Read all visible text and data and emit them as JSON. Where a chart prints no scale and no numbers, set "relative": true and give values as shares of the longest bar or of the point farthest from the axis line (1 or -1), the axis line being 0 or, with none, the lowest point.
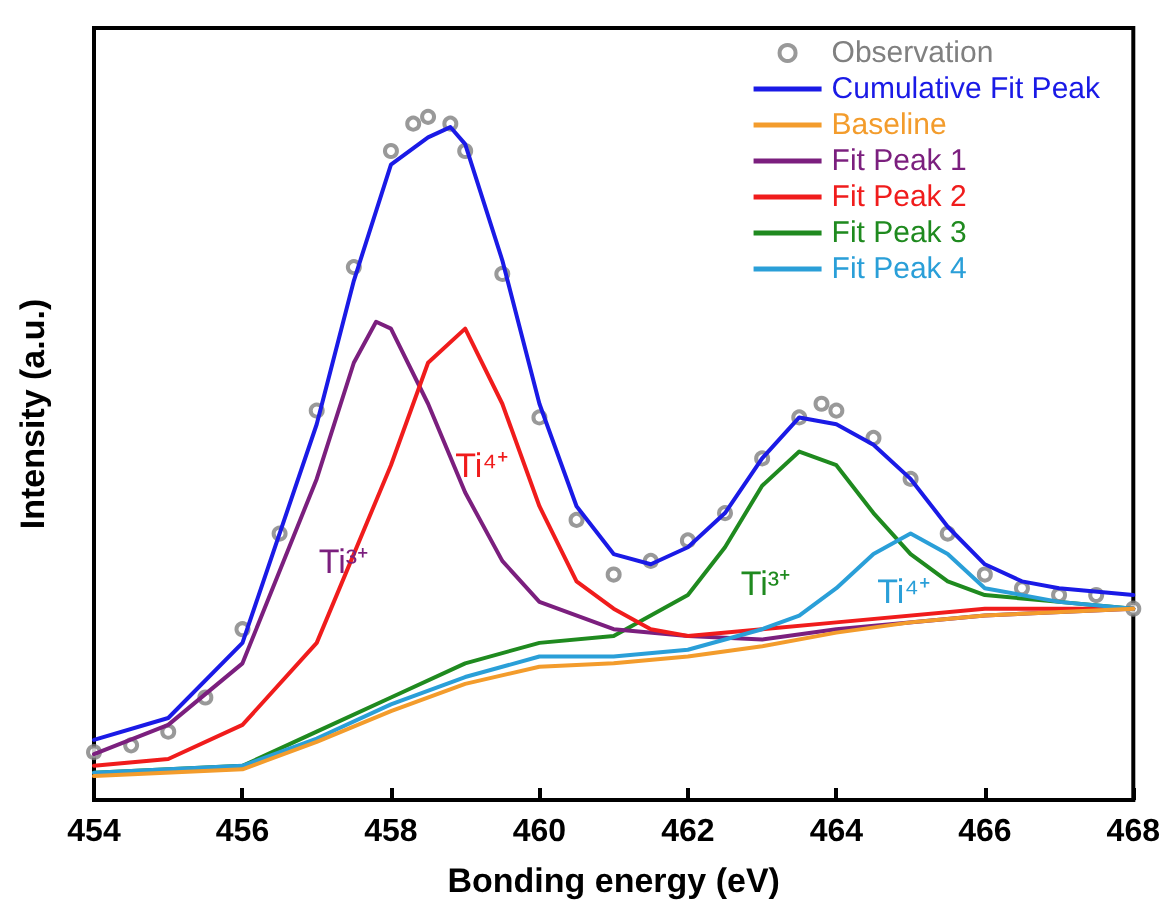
{
  "chart_data": {
    "type": "line",
    "relative": true,
    "xlabel": "Bonding energy (eV)",
    "ylabel": "Intensity (a.u.)",
    "xlim": [
      454,
      468
    ],
    "xticks": [
      454,
      456,
      458,
      460,
      462,
      464,
      466,
      468
    ],
    "legend": "top right",
    "grid": false,
    "annotations": [
      "Ti³⁺",
      "Ti⁴⁺",
      "Ti³⁺",
      "Ti⁴⁺"
    ],
    "series": [
      {
        "name": "Observation",
        "type": "scatter",
        "marker": "circle",
        "color": "#808080",
        "x": [
          454,
          454.5,
          455,
          455.5,
          456,
          456.5,
          457,
          457.5,
          458,
          458.3,
          458.5,
          458.8,
          459,
          459.5,
          460,
          460.5,
          461,
          461.5,
          462,
          462.5,
          463,
          463.5,
          463.8,
          464,
          464.5,
          465,
          465.5,
          466,
          466.5,
          467,
          467.5,
          468
        ],
        "values": [
          0.07,
          0.08,
          0.1,
          0.15,
          0.25,
          0.39,
          0.57,
          0.78,
          0.95,
          0.99,
          1.0,
          0.99,
          0.95,
          0.77,
          0.56,
          0.41,
          0.33,
          0.35,
          0.38,
          0.42,
          0.5,
          0.56,
          0.58,
          0.57,
          0.53,
          0.47,
          0.39,
          0.33,
          0.31,
          0.3,
          0.3,
          0.28
        ]
      },
      {
        "name": "Cumulative Fit Peak",
        "color": "#1a1ae6",
        "x": [
          454,
          455,
          456,
          457,
          457.5,
          458,
          458.5,
          458.8,
          459,
          459.5,
          460,
          460.5,
          461,
          461.5,
          462,
          462.5,
          463,
          463.5,
          464,
          464.5,
          465,
          465.5,
          466,
          466.5,
          467,
          468
        ],
        "values": [
          0.088,
          0.12,
          0.23,
          0.55,
          0.76,
          0.93,
          0.97,
          0.985,
          0.96,
          0.79,
          0.58,
          0.43,
          0.36,
          0.345,
          0.37,
          0.42,
          0.5,
          0.56,
          0.55,
          0.52,
          0.47,
          0.4,
          0.345,
          0.32,
          0.31,
          0.3
        ]
      },
      {
        "name": "Baseline",
        "color": "#f39c2c",
        "x": [
          454,
          456,
          457,
          458,
          459,
          460,
          461,
          462,
          463,
          464,
          465,
          466,
          468
        ],
        "values": [
          0.035,
          0.045,
          0.085,
          0.13,
          0.17,
          0.195,
          0.2,
          0.21,
          0.225,
          0.245,
          0.26,
          0.27,
          0.28
        ]
      },
      {
        "name": "Fit Peak 1",
        "color": "#7b1f7e",
        "x": [
          454,
          455,
          456,
          457,
          457.5,
          457.8,
          458,
          458.5,
          459,
          459.5,
          460,
          461,
          462,
          463,
          464,
          466,
          468
        ],
        "values": [
          0.067,
          0.11,
          0.2,
          0.47,
          0.64,
          0.7,
          0.69,
          0.58,
          0.45,
          0.35,
          0.29,
          0.25,
          0.24,
          0.235,
          0.25,
          0.27,
          0.28
        ]
      },
      {
        "name": "Fit Peak 2",
        "color": "#f01c1c",
        "x": [
          454,
          455,
          456,
          457,
          458,
          458.5,
          459,
          459.5,
          460,
          460.5,
          461,
          461.5,
          462,
          463,
          464,
          466,
          468
        ],
        "values": [
          0.05,
          0.06,
          0.11,
          0.23,
          0.49,
          0.64,
          0.69,
          0.58,
          0.43,
          0.32,
          0.28,
          0.25,
          0.24,
          0.25,
          0.26,
          0.28,
          0.28
        ]
      },
      {
        "name": "Fit Peak 3",
        "color": "#1f8a1f",
        "x": [
          454,
          456,
          457,
          458,
          459,
          460,
          461,
          462,
          462.5,
          463,
          463.5,
          464,
          464.5,
          465,
          465.5,
          466,
          467,
          468
        ],
        "values": [
          0.04,
          0.05,
          0.1,
          0.15,
          0.2,
          0.23,
          0.24,
          0.3,
          0.37,
          0.46,
          0.51,
          0.49,
          0.42,
          0.36,
          0.32,
          0.3,
          0.29,
          0.28
        ]
      },
      {
        "name": "Fit Peak 4",
        "color": "#2a9fd8",
        "x": [
          454,
          456,
          457,
          458,
          459,
          460,
          461,
          462,
          463,
          463.5,
          464,
          464.5,
          465,
          465.5,
          466,
          467,
          468
        ],
        "values": [
          0.04,
          0.05,
          0.09,
          0.14,
          0.18,
          0.21,
          0.21,
          0.22,
          0.25,
          0.27,
          0.31,
          0.36,
          0.39,
          0.36,
          0.31,
          0.29,
          0.28
        ]
      }
    ]
  }
}
